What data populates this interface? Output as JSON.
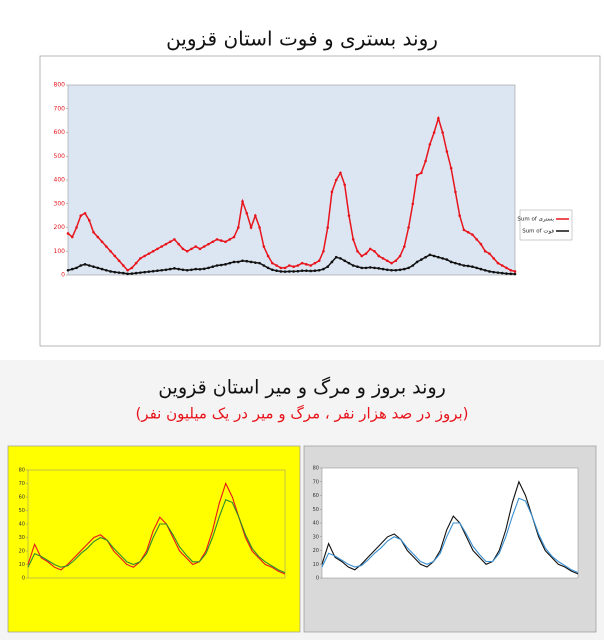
{
  "chart_data": [
    {
      "type": "line",
      "title": "روند بستری و فوت استان قزوین",
      "series": [
        {
          "name": "Sum of بستری",
          "color": "#e8141c",
          "values": [
            175,
            160,
            200,
            250,
            260,
            230,
            180,
            160,
            140,
            120,
            100,
            80,
            60,
            40,
            20,
            30,
            50,
            70,
            80,
            90,
            100,
            110,
            120,
            130,
            140,
            150,
            130,
            110,
            100,
            110,
            120,
            110,
            120,
            130,
            140,
            150,
            145,
            140,
            150,
            160,
            200,
            310,
            260,
            200,
            250,
            200,
            120,
            80,
            50,
            40,
            30,
            30,
            40,
            35,
            40,
            50,
            45,
            40,
            50,
            60,
            100,
            200,
            350,
            400,
            430,
            380,
            250,
            150,
            100,
            80,
            90,
            110,
            100,
            80,
            70,
            60,
            50,
            60,
            80,
            120,
            200,
            300,
            420,
            430,
            480,
            550,
            600,
            660,
            600,
            520,
            450,
            350,
            250,
            190,
            180,
            170,
            150,
            130,
            100,
            90,
            70,
            50,
            40,
            30,
            20,
            15
          ]
        },
        {
          "name": "Sum of فوت",
          "color": "#111111",
          "values": [
            20,
            25,
            30,
            40,
            45,
            40,
            35,
            30,
            25,
            20,
            15,
            12,
            10,
            8,
            5,
            6,
            8,
            10,
            12,
            14,
            16,
            18,
            20,
            22,
            25,
            28,
            25,
            22,
            20,
            22,
            25,
            24,
            26,
            30,
            35,
            40,
            42,
            45,
            50,
            55,
            55,
            60,
            58,
            55,
            52,
            50,
            40,
            30,
            22,
            18,
            15,
            14,
            15,
            15,
            16,
            18,
            18,
            17,
            18,
            20,
            25,
            35,
            55,
            75,
            70,
            60,
            50,
            40,
            35,
            30,
            30,
            32,
            30,
            28,
            25,
            22,
            20,
            20,
            22,
            25,
            30,
            40,
            55,
            65,
            75,
            85,
            80,
            75,
            70,
            65,
            55,
            50,
            45,
            40,
            38,
            35,
            30,
            25,
            20,
            15,
            12,
            10,
            8,
            6,
            5,
            4
          ]
        }
      ],
      "ylim": [
        0,
        800
      ],
      "yticks": [
        0,
        100,
        200,
        300,
        400,
        500,
        600,
        700,
        800
      ],
      "tick_color": "#e8141c",
      "plot_color": "#dce6f2",
      "panel_color": "#ffffff",
      "grid": false,
      "legend": "right"
    },
    {
      "type": "line",
      "series": [
        {
          "color": "#e8141c",
          "values": [
            10,
            25,
            15,
            12,
            8,
            6,
            10,
            15,
            20,
            25,
            30,
            32,
            28,
            20,
            15,
            10,
            8,
            12,
            20,
            35,
            45,
            40,
            30,
            20,
            15,
            10,
            12,
            20,
            35,
            55,
            70,
            60,
            45,
            30,
            20,
            15,
            10,
            8,
            5,
            3
          ]
        },
        {
          "color": "#2e8b2e",
          "values": [
            8,
            18,
            16,
            13,
            10,
            8,
            9,
            13,
            18,
            22,
            27,
            30,
            28,
            22,
            17,
            12,
            10,
            12,
            18,
            30,
            40,
            40,
            32,
            23,
            17,
            12,
            12,
            18,
            30,
            45,
            58,
            56,
            45,
            32,
            22,
            16,
            12,
            9,
            6,
            4
          ]
        }
      ],
      "ylim": [
        0,
        80
      ],
      "yticks": [
        0,
        10,
        20,
        30,
        40,
        50,
        60,
        70,
        80
      ],
      "tick_color": "#333333",
      "plot_color": "#ffff00",
      "panel_color": "#ffff00",
      "grid": false
    },
    {
      "type": "line",
      "series": [
        {
          "color": "#111111",
          "values": [
            10,
            25,
            15,
            12,
            8,
            6,
            10,
            15,
            20,
            25,
            30,
            32,
            28,
            20,
            15,
            10,
            8,
            12,
            20,
            35,
            45,
            40,
            30,
            20,
            15,
            10,
            12,
            20,
            35,
            55,
            70,
            60,
            45,
            30,
            20,
            15,
            10,
            8,
            5,
            3
          ]
        },
        {
          "color": "#3a8fd0",
          "values": [
            8,
            18,
            16,
            13,
            10,
            8,
            9,
            13,
            18,
            22,
            27,
            30,
            28,
            22,
            17,
            12,
            10,
            12,
            18,
            30,
            40,
            40,
            32,
            23,
            17,
            12,
            12,
            18,
            30,
            45,
            58,
            56,
            45,
            32,
            22,
            16,
            12,
            9,
            6,
            4
          ]
        }
      ],
      "ylim": [
        0,
        80
      ],
      "yticks": [
        0,
        10,
        20,
        30,
        40,
        50,
        60,
        70,
        80
      ],
      "tick_color": "#333333",
      "plot_color": "#ffffff",
      "panel_color": "#d9d9d9",
      "grid": false
    }
  ],
  "section_title": "روند بروز و مرگ و میر استان قزوین",
  "section_subtitle": "(بروز در صد هزار نفر ، مرگ و میر در یک میلیون نفر)"
}
